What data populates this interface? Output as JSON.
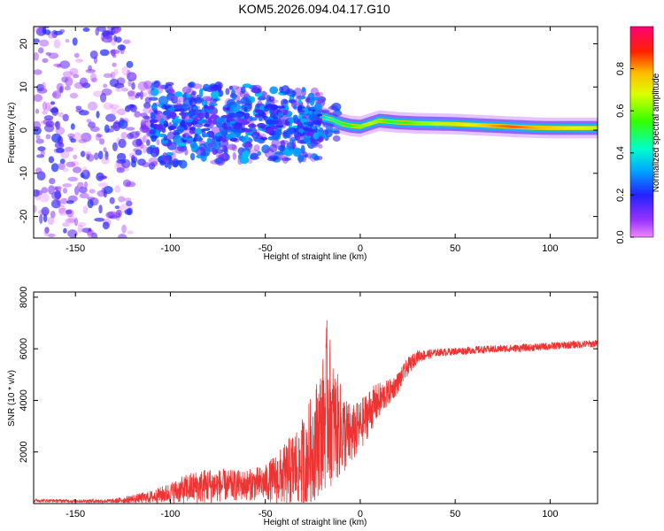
{
  "title": "KOM5.2026.094.04.17.G10",
  "chart_data": [
    {
      "type": "heatmap",
      "xlabel": "Height of straight line (km)",
      "ylabel": "Frequency (Hz)",
      "xlim": [
        -172,
        125
      ],
      "ylim": [
        -25,
        24
      ],
      "xticks": [
        -150,
        -100,
        -50,
        0,
        50,
        100
      ],
      "yticks": [
        -20,
        -10,
        0,
        10,
        20
      ],
      "colorbar": {
        "label": "Normalized spectral amplitude",
        "range": [
          0,
          1
        ],
        "ticks": [
          "0.0",
          "0.2",
          "0.4",
          "0.6",
          "0.8"
        ],
        "tick_values": [
          0,
          0.2,
          0.4,
          0.6,
          0.8
        ]
      },
      "ridge": {
        "x": [
          -20,
          -15,
          -10,
          -5,
          0,
          5,
          10,
          15,
          20,
          30,
          40,
          50,
          60,
          70,
          80,
          90,
          100,
          110,
          125
        ],
        "freq": [
          3.0,
          2.5,
          1.5,
          1.0,
          0.8,
          1.5,
          2.2,
          2.0,
          1.8,
          1.6,
          1.5,
          1.4,
          1.2,
          1.0,
          0.8,
          0.6,
          0.5,
          0.5,
          0.5
        ],
        "amplitude": [
          0.35,
          0.45,
          0.5,
          0.55,
          0.6,
          0.65,
          0.6,
          0.55,
          0.5,
          0.6,
          0.65,
          0.65,
          0.7,
          0.8,
          0.85,
          0.8,
          0.75,
          0.7,
          0.65
        ]
      }
    },
    {
      "type": "line",
      "xlabel": "Height of straight line (km)",
      "ylabel": "SNR (10 * v/v)",
      "xlim": [
        -172,
        125
      ],
      "ylim": [
        0,
        8200
      ],
      "xticks": [
        -150,
        -100,
        -50,
        0,
        50,
        100
      ],
      "yticks": [
        2000,
        4000,
        6000,
        8000
      ],
      "color": "#ee3333",
      "envelope": {
        "x": [
          -172,
          -150,
          -130,
          -110,
          -100,
          -90,
          -80,
          -70,
          -60,
          -50,
          -40,
          -30,
          -25,
          -20,
          -17,
          -15,
          -10,
          -5,
          0,
          5,
          10,
          15,
          20,
          25,
          30,
          40,
          50,
          60,
          75,
          90,
          100,
          110,
          125
        ],
        "mean": [
          120,
          100,
          100,
          250,
          420,
          600,
          700,
          700,
          720,
          800,
          1100,
          1600,
          2200,
          3000,
          4000,
          3200,
          2800,
          2600,
          3000,
          3600,
          4000,
          4300,
          4700,
          5300,
          5700,
          5850,
          5900,
          5950,
          6000,
          6050,
          6100,
          6150,
          6200
        ],
        "amplitude": [
          60,
          60,
          80,
          250,
          400,
          600,
          700,
          600,
          600,
          700,
          1200,
          1800,
          2200,
          2500,
          3500,
          2500,
          1800,
          1200,
          1000,
          900,
          700,
          500,
          400,
          350,
          250,
          150,
          150,
          150,
          150,
          150,
          150,
          150,
          150
        ]
      }
    }
  ]
}
